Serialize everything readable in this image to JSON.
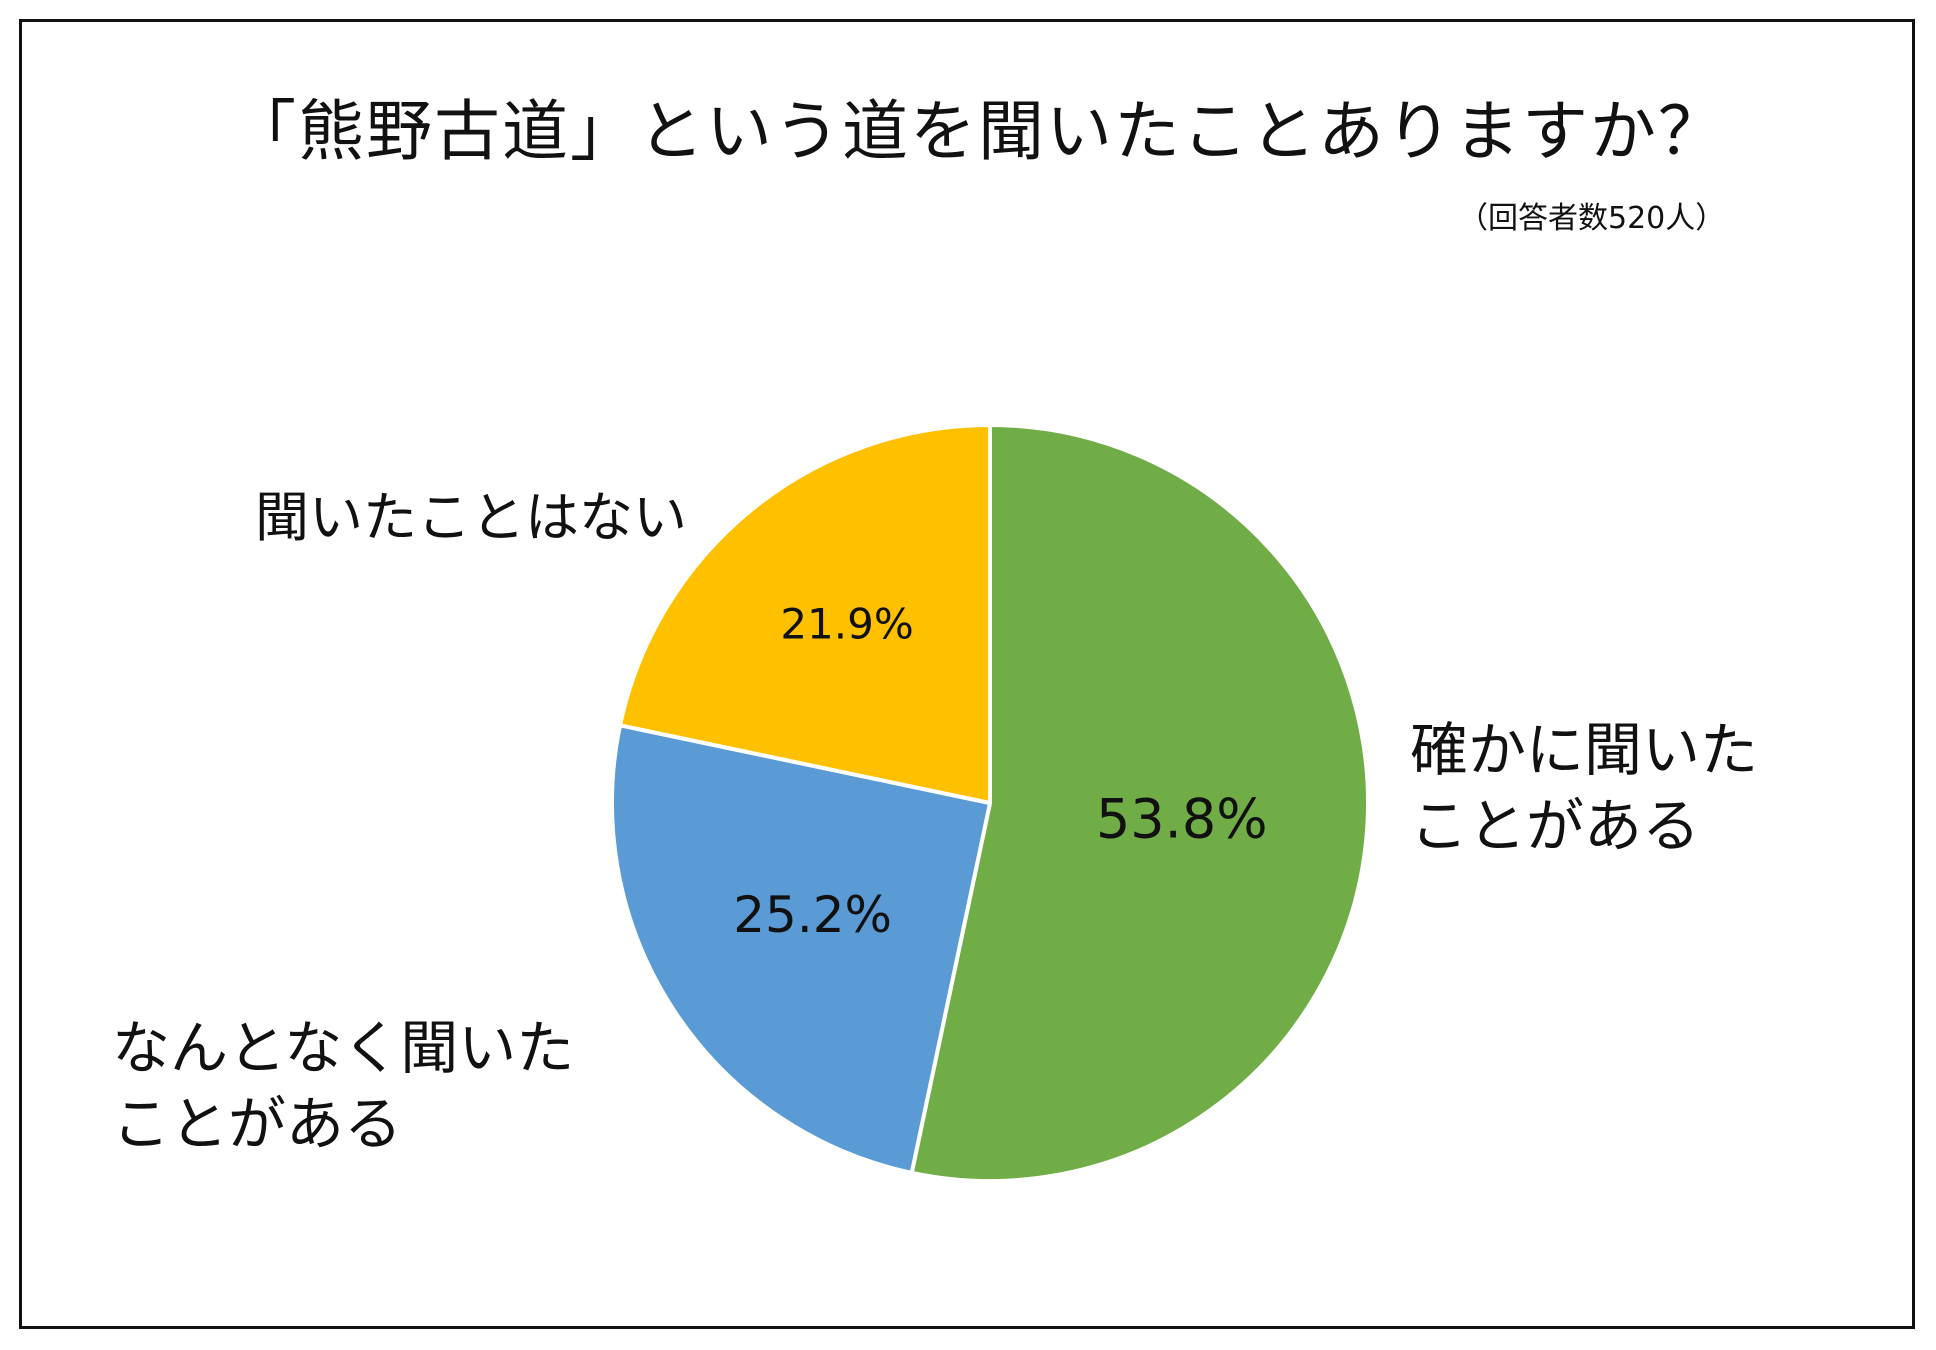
{
  "title": "「熊野古道」という道を聞いたことありますか？",
  "subtitle": "（回答者数520人）",
  "chart_data": {
    "type": "pie",
    "title": "「熊野古道」という道を聞いたことありますか？",
    "subtitle": "（回答者数520人）",
    "slices": [
      {
        "label_lines": [
          "確かに聞いた",
          "ことがある"
        ],
        "value": 53.8,
        "value_label": "53.8%",
        "color": "#70AD47"
      },
      {
        "label_lines": [
          "なんとなく聞いた",
          "ことがある"
        ],
        "value": 25.2,
        "value_label": "25.2%",
        "color": "#5B9BD5"
      },
      {
        "label_lines": [
          "聞いたことはない"
        ],
        "value": 21.9,
        "value_label": "21.9%",
        "color": "#FFC000"
      }
    ],
    "start_angle": "12 o'clock",
    "direction": "clockwise"
  }
}
